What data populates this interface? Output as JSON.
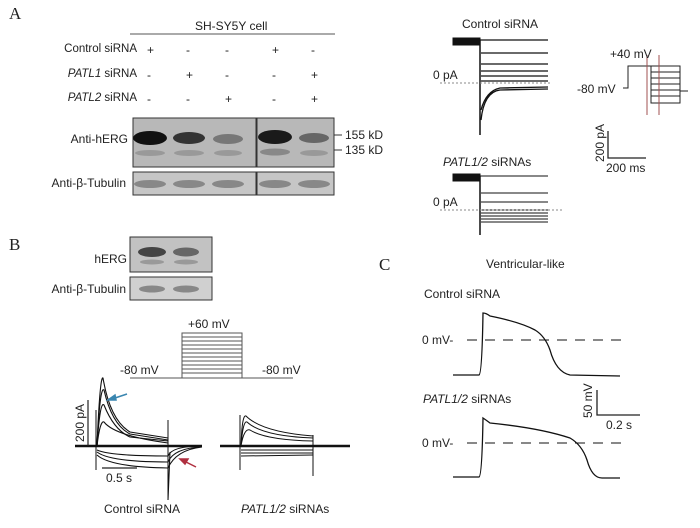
{
  "panels": {
    "A": {
      "label": "A",
      "cell_line": "SH-SY5Y cell",
      "rows": [
        {
          "gene": "",
          "rest": "Control siRNA",
          "signs": [
            "+",
            "-",
            "-",
            "+",
            "-"
          ]
        },
        {
          "gene": "PATL1",
          "rest": " siRNA",
          "signs": [
            "-",
            "+",
            "-",
            "-",
            "+"
          ]
        },
        {
          "gene": "PATL2",
          "rest": " siRNA",
          "signs": [
            "-",
            "-",
            "+",
            "-",
            "+"
          ]
        }
      ],
      "blot_labels": {
        "herg": "Anti-hERG",
        "tubulin": "Anti-β-Tubulin"
      },
      "mw_markers": [
        "155 kD",
        "135 kD"
      ],
      "trace_titles": {
        "control": "Control siRNA",
        "patl_gene": "PATL1/2",
        "patl_rest": " siRNAs"
      },
      "zero_label": "0 pA",
      "protocol": {
        "high": "+40 mV",
        "hold": "-80 mV"
      },
      "scale": {
        "current": "200 pA",
        "time": "200 ms"
      }
    },
    "B": {
      "label": "B",
      "blot_labels": {
        "herg": "hERG",
        "tubulin": "Anti-β-Tubulin"
      },
      "protocol": {
        "high": "+60 mV",
        "hold_left": "-80 mV",
        "hold_right": "-80 mV"
      },
      "scale": {
        "current": "200 pA",
        "time": "0.5 s"
      },
      "conditions": {
        "control": "Control siRNA",
        "patl_gene": "PATL1/2",
        "patl_rest": " siRNAs"
      },
      "arrow_colors": {
        "blue": "#3a86b0",
        "red": "#b03040"
      }
    },
    "C": {
      "label": "C",
      "title": "Ventricular-like",
      "control": "Control siRNA",
      "patl_gene": "PATL1/2",
      "patl_rest": " siRNAs",
      "zero_label": "0 mV-",
      "scale": {
        "voltage": "50 mV",
        "time": "0.2 s"
      }
    }
  }
}
